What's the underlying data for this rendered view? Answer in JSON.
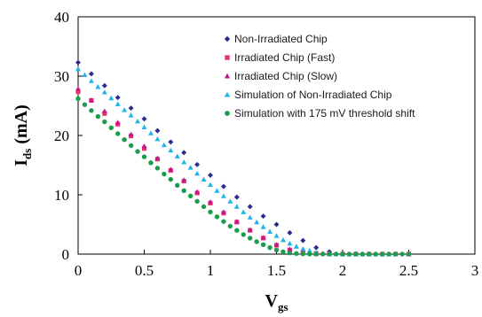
{
  "chart_data": {
    "type": "scatter",
    "title": "",
    "xlabel": "V",
    "xlabel_sub": "gs",
    "ylabel": "I",
    "ylabel_sub": "ds",
    "ylabel_unit": " (mA)",
    "xlim": [
      0,
      3
    ],
    "ylim": [
      0,
      40
    ],
    "x_ticks": [
      "0",
      "0.5",
      "1",
      "1.5",
      "2",
      "2.5",
      "3"
    ],
    "y_ticks": [
      "0",
      "10",
      "20",
      "30",
      "40"
    ],
    "grid": false,
    "legend_position": "top-right",
    "series": [
      {
        "name": "Non-Irradiated Chip",
        "marker": "diamond",
        "color": "#2a2f8f",
        "x": [
          0,
          0.1,
          0.2,
          0.3,
          0.4,
          0.5,
          0.6,
          0.7,
          0.8,
          0.9,
          1.0,
          1.1,
          1.2,
          1.3,
          1.4,
          1.5,
          1.6,
          1.7,
          1.8,
          1.9,
          2.0,
          2.1,
          2.2,
          2.3,
          2.4,
          2.5
        ],
        "y": [
          32.3,
          30.4,
          28.4,
          26.4,
          24.6,
          22.8,
          20.8,
          18.9,
          17.1,
          15.1,
          13.3,
          11.4,
          9.6,
          8.0,
          6.4,
          5.0,
          3.6,
          2.3,
          1.1,
          0.4,
          0.1,
          0.05,
          0.03,
          0.02,
          0.01,
          0.01
        ]
      },
      {
        "name": "Irradiated Chip (Fast)",
        "marker": "square",
        "color": "#e8336e",
        "x": [
          0,
          0.1,
          0.2,
          0.3,
          0.4,
          0.5,
          0.6,
          0.7,
          0.8,
          0.9,
          1.0,
          1.1,
          1.2,
          1.3,
          1.4,
          1.5,
          1.6,
          1.7,
          1.8,
          1.9,
          2.0,
          2.1,
          2.2,
          2.3,
          2.4,
          2.5
        ],
        "y": [
          27.4,
          25.9,
          23.7,
          21.9,
          19.9,
          17.8,
          16.0,
          14.1,
          12.3,
          10.3,
          8.6,
          6.9,
          5.4,
          4.0,
          2.7,
          1.5,
          0.7,
          0.3,
          0.1,
          0.05,
          0.02,
          0.01,
          0.01,
          0.01,
          0.01,
          0.01
        ]
      },
      {
        "name": "Irradiated Chip (Slow)",
        "marker": "triangle",
        "color": "#c2188a",
        "x": [
          0,
          0.1,
          0.2,
          0.3,
          0.4,
          0.5,
          0.6,
          0.7,
          0.8,
          0.9,
          1.0,
          1.1,
          1.2,
          1.3,
          1.4,
          1.5,
          1.6,
          1.7,
          1.8,
          1.9,
          2.0,
          2.1,
          2.2,
          2.3,
          2.4,
          2.5
        ],
        "y": [
          27.9,
          26.0,
          24.1,
          22.2,
          20.2,
          18.2,
          16.2,
          14.3,
          12.5,
          10.5,
          8.8,
          7.1,
          5.5,
          4.1,
          2.8,
          1.6,
          0.8,
          0.3,
          0.1,
          0.05,
          0.02,
          0.01,
          0.01,
          0.01,
          0.01,
          0.01
        ]
      },
      {
        "name": "Simulation  of Non-Irradiated Chip",
        "marker": "triangle",
        "color": "#1fb5e8",
        "x": [
          0,
          0.05,
          0.1,
          0.15,
          0.2,
          0.25,
          0.3,
          0.35,
          0.4,
          0.45,
          0.5,
          0.55,
          0.6,
          0.65,
          0.7,
          0.75,
          0.8,
          0.85,
          0.9,
          0.95,
          1.0,
          1.05,
          1.1,
          1.15,
          1.2,
          1.25,
          1.3,
          1.35,
          1.4,
          1.45,
          1.5,
          1.55,
          1.6,
          1.65,
          1.7,
          1.75,
          1.8,
          1.85,
          1.9,
          1.95,
          2.0,
          2.05,
          2.1,
          2.15,
          2.2,
          2.25,
          2.3,
          2.35,
          2.4
        ],
        "y": [
          31.2,
          30.2,
          29.2,
          28.2,
          27.3,
          26.3,
          25.3,
          24.3,
          23.4,
          22.4,
          21.4,
          20.4,
          19.4,
          18.4,
          17.5,
          16.5,
          15.5,
          14.6,
          13.6,
          12.6,
          11.7,
          10.7,
          9.8,
          8.9,
          8.0,
          7.1,
          6.2,
          5.4,
          4.6,
          3.8,
          3.1,
          2.4,
          1.8,
          1.3,
          0.9,
          0.6,
          0.3,
          0.15,
          0.05,
          0.02,
          0.01,
          0.01,
          0.01,
          0.01,
          0.01,
          0.01,
          0.01,
          0.01,
          0.01
        ]
      },
      {
        "name": "Simulation with 175 mV threshold shift",
        "marker": "circle",
        "color": "#1b9e4b",
        "x": [
          0,
          0.05,
          0.1,
          0.15,
          0.2,
          0.25,
          0.3,
          0.35,
          0.4,
          0.45,
          0.5,
          0.55,
          0.6,
          0.65,
          0.7,
          0.75,
          0.8,
          0.85,
          0.9,
          0.95,
          1.0,
          1.05,
          1.1,
          1.15,
          1.2,
          1.25,
          1.3,
          1.35,
          1.4,
          1.45,
          1.5,
          1.55,
          1.6,
          1.65,
          1.7,
          1.75,
          1.8,
          1.85,
          1.9,
          1.95,
          2.0,
          2.05,
          2.1,
          2.15,
          2.2,
          2.25,
          2.3,
          2.35,
          2.4,
          2.45,
          2.5
        ],
        "y": [
          26.2,
          25.2,
          24.2,
          23.2,
          22.3,
          21.3,
          20.3,
          19.3,
          18.3,
          17.3,
          16.4,
          15.4,
          14.5,
          13.5,
          12.6,
          11.6,
          10.7,
          9.8,
          8.9,
          8.0,
          7.1,
          6.3,
          5.5,
          4.7,
          4.0,
          3.3,
          2.7,
          2.1,
          1.6,
          1.1,
          0.7,
          0.4,
          0.2,
          0.1,
          0.05,
          0.02,
          0.01,
          0.01,
          0.01,
          0.01,
          0.01,
          0.01,
          0.01,
          0.01,
          0.01,
          0.01,
          0.01,
          0.01,
          0.01,
          0.01,
          0.01
        ]
      }
    ]
  }
}
